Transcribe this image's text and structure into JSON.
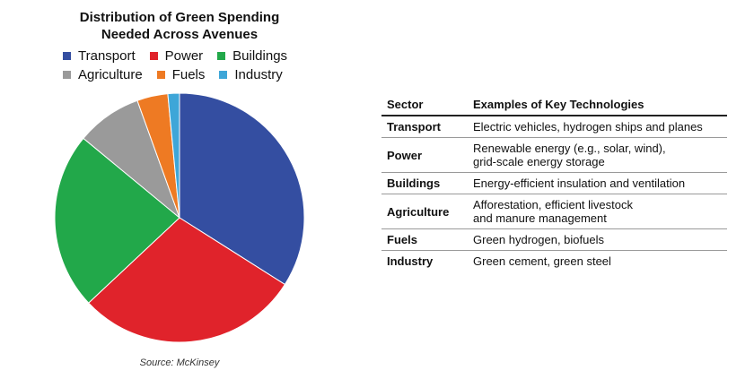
{
  "chart_data": {
    "type": "pie",
    "title_lines": [
      "Distribution of Green Spending",
      "Needed Across Avenues"
    ],
    "legend_rows": [
      [
        "Transport",
        "Power",
        "Buildings"
      ],
      [
        "Agriculture",
        "Fuels",
        "Industry"
      ]
    ],
    "slices": [
      {
        "label": "Transport",
        "value": 34,
        "color": "#344ea1"
      },
      {
        "label": "Power",
        "value": 29,
        "color": "#e0232b"
      },
      {
        "label": "Buildings",
        "value": 23,
        "color": "#22a84a"
      },
      {
        "label": "Agriculture",
        "value": 8.5,
        "color": "#9a9a9a"
      },
      {
        "label": "Fuels",
        "value": 4,
        "color": "#ee7a23"
      },
      {
        "label": "Industry",
        "value": 1.5,
        "color": "#3ea6d8"
      }
    ],
    "source": "Source: McKinsey"
  },
  "table": {
    "headers": [
      "Sector",
      "Examples of Key Technologies"
    ],
    "rows": [
      {
        "sector": "Transport",
        "tech": "Electric vehicles, hydrogen ships and planes"
      },
      {
        "sector": "Power",
        "tech": "Renewable energy (e.g., solar, wind),\ngrid-scale energy storage"
      },
      {
        "sector": "Buildings",
        "tech": "Energy-efficient insulation and ventilation"
      },
      {
        "sector": "Agriculture",
        "tech": "Afforestation, efficient livestock\nand manure management"
      },
      {
        "sector": "Fuels",
        "tech": "Green hydrogen, biofuels"
      },
      {
        "sector": "Industry",
        "tech": "Green cement, green steel"
      }
    ]
  }
}
